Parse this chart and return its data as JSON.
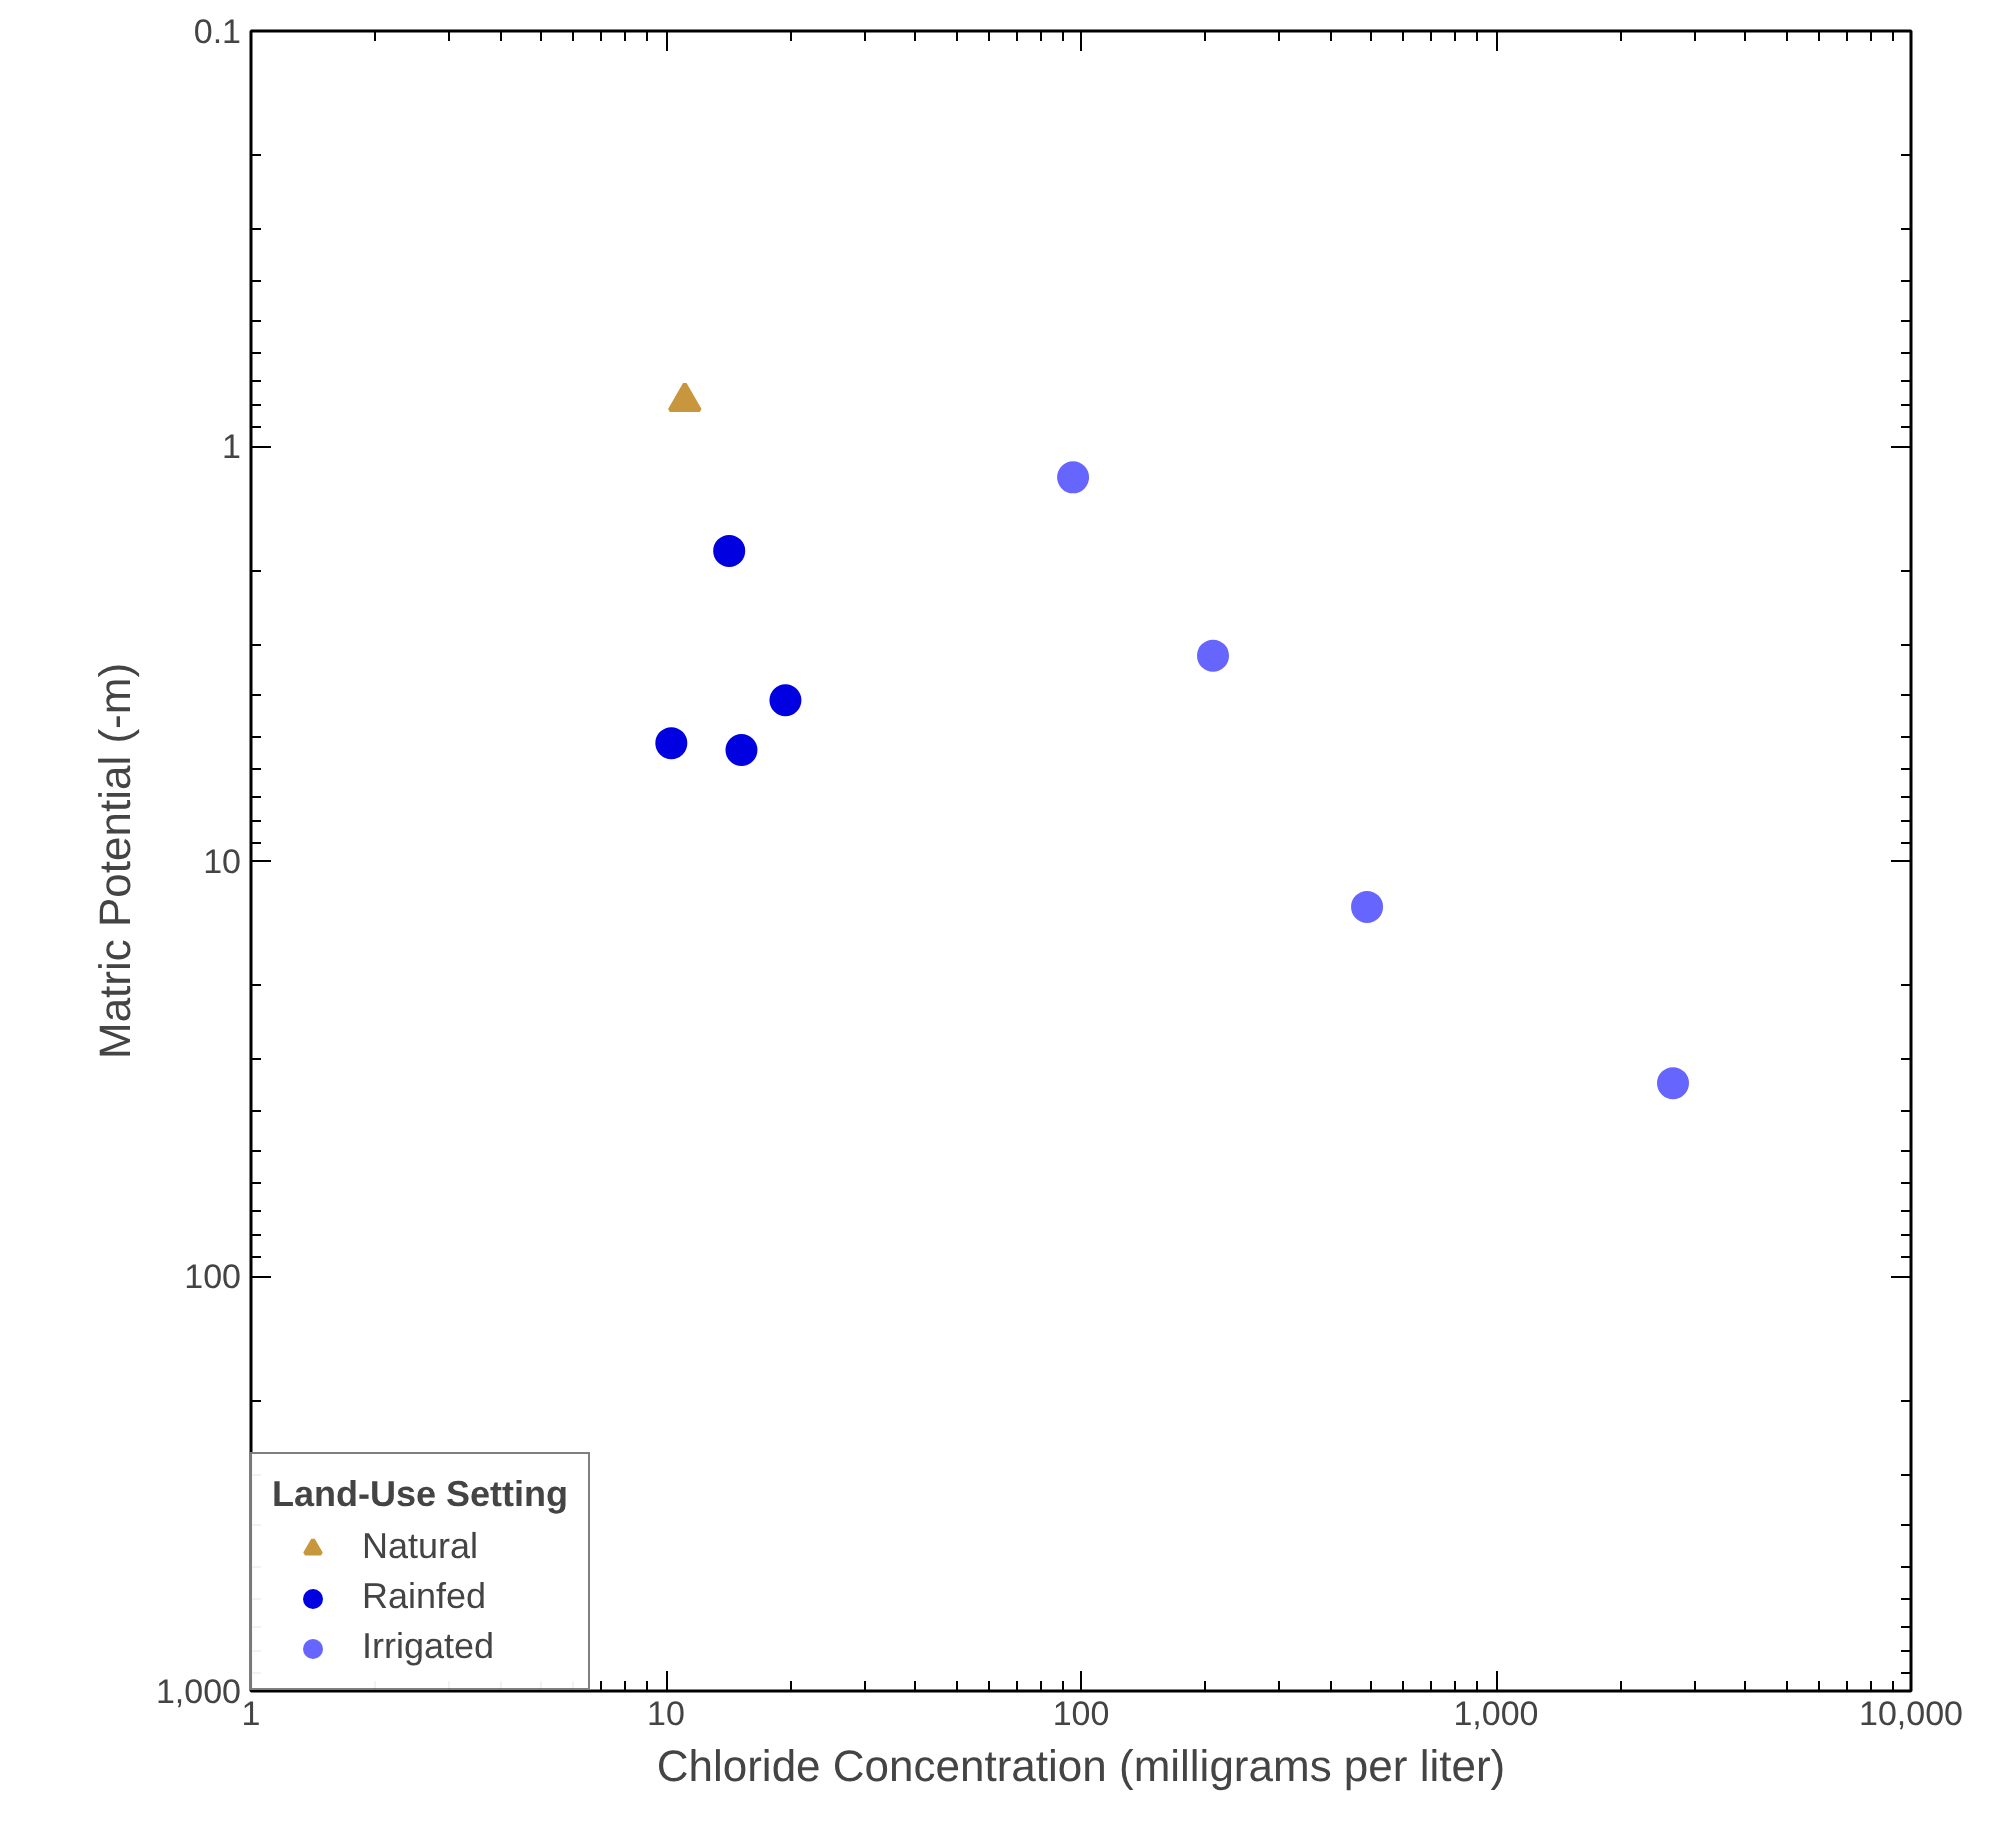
{
  "chart_data": {
    "type": "scatter",
    "xlabel": "Chloride Concentration (milligrams per liter)",
    "ylabel": "Matric Potential (-m)",
    "log": "xy",
    "grid": false,
    "legend": "bottom left",
    "legend_title": "Land-Use Setting",
    "xlim": [
      1,
      10000
    ],
    "xticks": [
      1,
      10,
      100,
      {
        "value": 1000,
        "label": "1,000"
      },
      {
        "value": 10000,
        "label": "10,000"
      }
    ],
    "ylim": [
      1000,
      0.1
    ],
    "yticks": [
      0.1,
      1,
      10,
      100,
      {
        "value": 1000,
        "label": "1,000"
      }
    ],
    "series": [
      {
        "name": "Natural",
        "color": "#c8963c",
        "marker": "triangle",
        "x": [
          11.1
        ],
        "values": [
          0.78
        ]
      },
      {
        "name": "Rainfed",
        "color": "#0000e0",
        "marker": "circle",
        "x": [
          14.2,
          10.3,
          15.2,
          19.4
        ],
        "values": [
          1.79,
          5.2,
          5.4,
          4.1
        ]
      },
      {
        "name": "Irrigated",
        "color": "#6666ff",
        "marker": "circle",
        "x": [
          95.7,
          208,
          489,
          2670
        ],
        "values": [
          1.19,
          3.2,
          12.9,
          34.3
        ]
      }
    ]
  }
}
